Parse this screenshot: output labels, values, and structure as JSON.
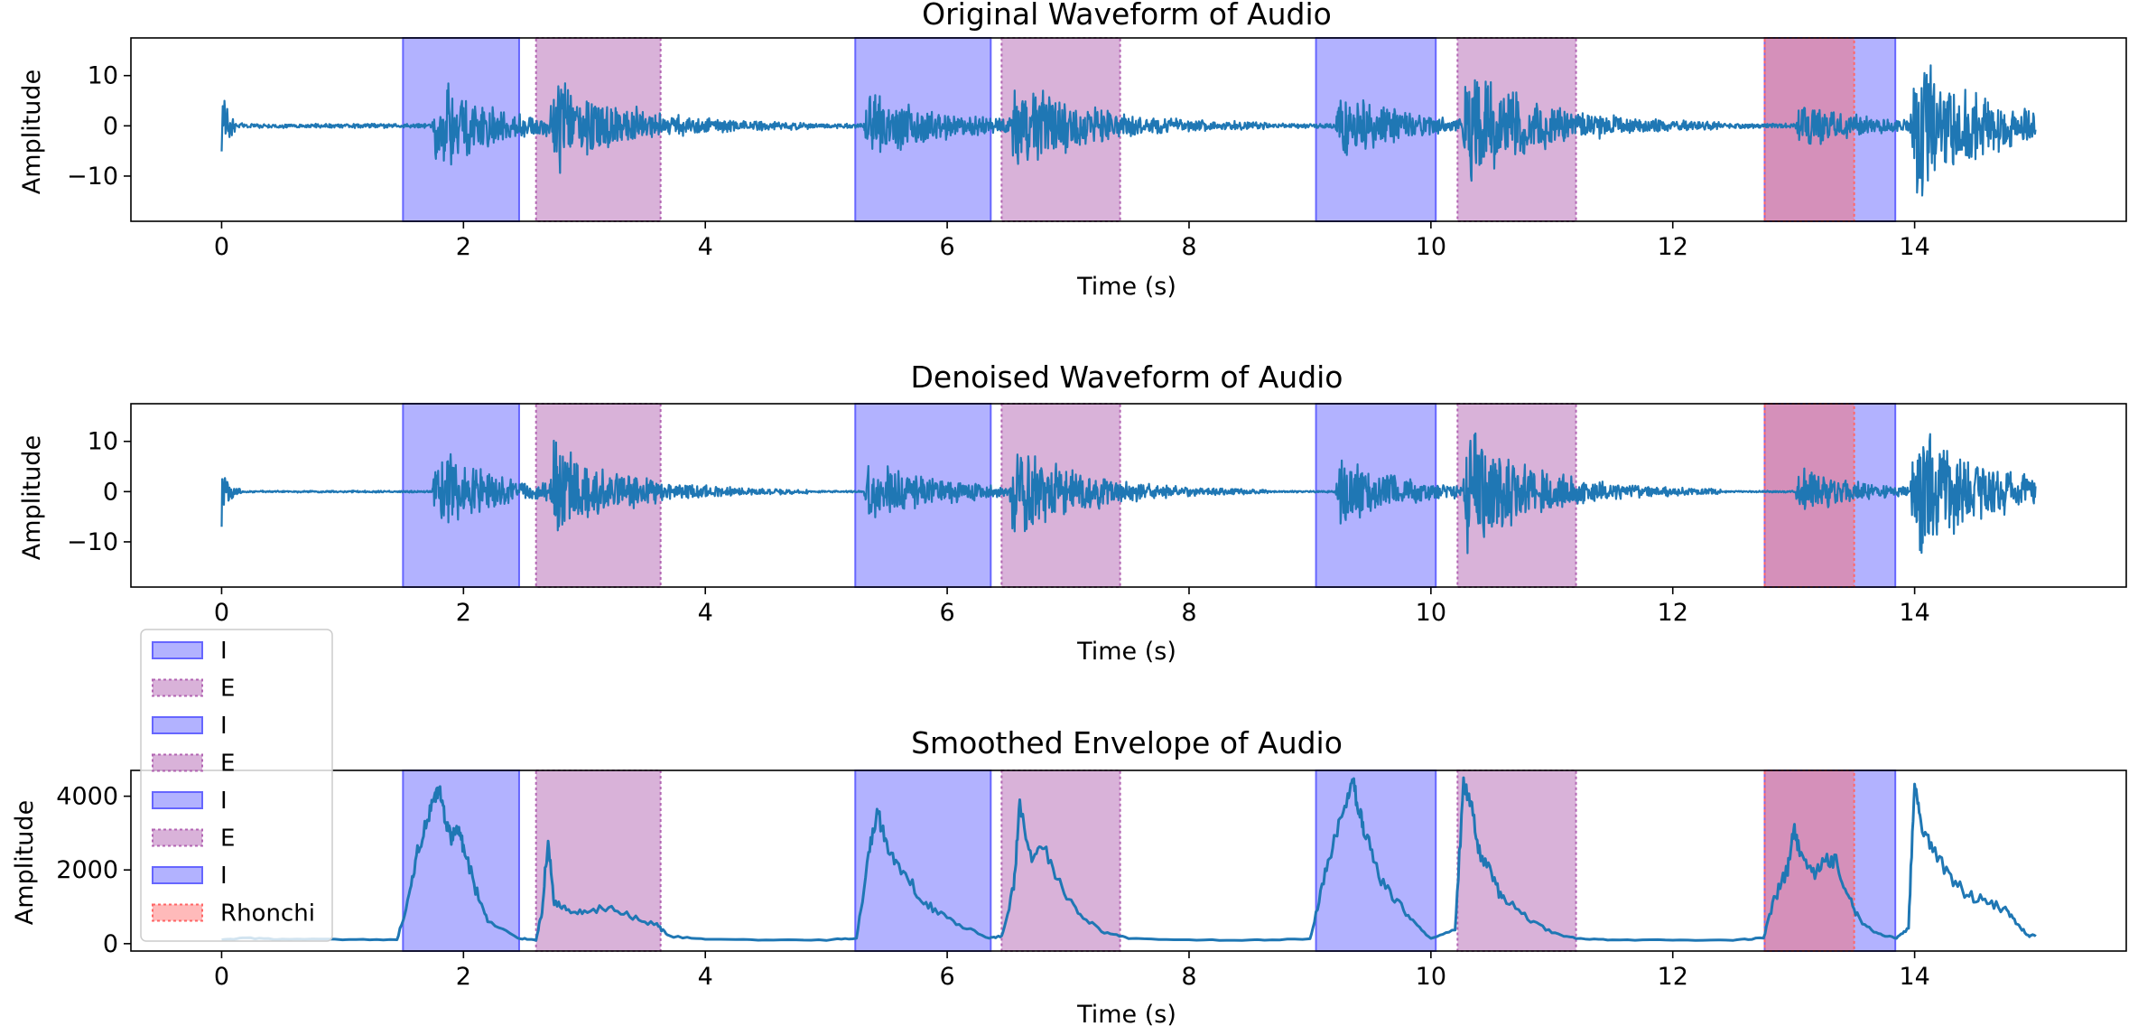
{
  "figure": {
    "background": "#ffffff",
    "signal_color": "#1f77b4",
    "inhale_color": "#6666ff",
    "exhale_color": "#b366b3",
    "rhonchi_color": "#ff6666"
  },
  "chart_data": [
    {
      "type": "line",
      "title": "Original Waveform of Audio",
      "xlabel": "Time (s)",
      "ylabel": "Amplitude",
      "xlim": [
        -0.75,
        15.75
      ],
      "ylim": [
        -19,
        17.5
      ],
      "xticks": [
        0,
        2,
        4,
        6,
        8,
        10,
        12,
        14
      ],
      "yticks": [
        10,
        0,
        -10
      ],
      "series": [
        {
          "kind": "waveform",
          "baseline": 0,
          "noise": 0.5,
          "bursts": [
            {
              "t": 0.0,
              "amp": 9,
              "decay": 0.05
            },
            {
              "t": 1.78,
              "amp": 10,
              "decay": 0.5
            },
            {
              "t": 2.75,
              "amp": 9.5,
              "decay": 0.6
            },
            {
              "t": 5.35,
              "amp": 7,
              "decay": 0.6
            },
            {
              "t": 6.55,
              "amp": 10,
              "decay": 0.6
            },
            {
              "t": 9.25,
              "amp": 8,
              "decay": 0.5
            },
            {
              "t": 10.3,
              "amp": 13,
              "decay": 0.6
            },
            {
              "t": 13.05,
              "amp": 5,
              "decay": 0.5
            },
            {
              "t": 14.0,
              "amp": 15.5,
              "decay": 0.6
            }
          ]
        }
      ]
    },
    {
      "type": "line",
      "title": "Denoised Waveform of Audio",
      "xlabel": "Time (s)",
      "ylabel": "Amplitude",
      "xlim": [
        -0.75,
        15.75
      ],
      "ylim": [
        -19,
        17.5
      ],
      "xticks": [
        0,
        2,
        4,
        6,
        8,
        10,
        12,
        14
      ],
      "yticks": [
        10,
        0,
        -10
      ],
      "series": [
        {
          "kind": "waveform",
          "baseline": 0,
          "noise": 0.2,
          "bursts": [
            {
              "t": 0.0,
              "amp": 8.5,
              "decay": 0.05
            },
            {
              "t": 1.78,
              "amp": 10,
              "decay": 0.5
            },
            {
              "t": 2.75,
              "amp": 9.5,
              "decay": 0.6
            },
            {
              "t": 5.35,
              "amp": 7,
              "decay": 0.6
            },
            {
              "t": 6.55,
              "amp": 10,
              "decay": 0.6
            },
            {
              "t": 9.25,
              "amp": 8,
              "decay": 0.5
            },
            {
              "t": 10.3,
              "amp": 13,
              "decay": 0.6
            },
            {
              "t": 13.05,
              "amp": 5,
              "decay": 0.5
            },
            {
              "t": 14.0,
              "amp": 15.5,
              "decay": 0.6
            }
          ]
        }
      ]
    },
    {
      "type": "line",
      "title": "Smoothed Envelope of Audio",
      "xlabel": "Time (s)",
      "ylabel": "Amplitude",
      "xlim": [
        -0.75,
        15.75
      ],
      "ylim": [
        -200,
        4700
      ],
      "xticks": [
        0,
        2,
        4,
        6,
        8,
        10,
        12,
        14
      ],
      "yticks": [
        4000,
        2000,
        0
      ],
      "series": [
        {
          "kind": "envelope",
          "x": [
            0,
            0.2,
            0.5,
            1.0,
            1.45,
            1.55,
            1.62,
            1.7,
            1.76,
            1.8,
            1.85,
            1.9,
            1.95,
            2.0,
            2.1,
            2.2,
            2.45,
            2.6,
            2.65,
            2.7,
            2.75,
            2.85,
            3.0,
            3.2,
            3.4,
            3.6,
            3.7,
            4.0,
            4.5,
            5.0,
            5.25,
            5.35,
            5.42,
            5.5,
            5.6,
            5.75,
            5.9,
            6.1,
            6.35,
            6.45,
            6.55,
            6.6,
            6.7,
            6.8,
            6.95,
            7.1,
            7.3,
            7.5,
            8.0,
            8.5,
            9.0,
            9.1,
            9.2,
            9.3,
            9.35,
            9.4,
            9.45,
            9.55,
            9.7,
            9.85,
            10.0,
            10.2,
            10.27,
            10.33,
            10.4,
            10.5,
            10.6,
            10.8,
            11.0,
            11.2,
            11.5,
            12.0,
            12.5,
            12.75,
            12.85,
            12.95,
            13.0,
            13.05,
            13.15,
            13.25,
            13.35,
            13.45,
            13.55,
            13.7,
            13.85,
            13.95,
            14.0,
            14.05,
            14.15,
            14.3,
            14.45,
            14.6,
            14.75,
            14.85,
            14.95,
            15.0
          ],
          "y": [
            100,
            150,
            120,
            110,
            100,
            1200,
            2500,
            3300,
            3900,
            4150,
            3400,
            2800,
            3200,
            2600,
            1500,
            600,
            150,
            100,
            900,
            2800,
            1100,
            900,
            800,
            1000,
            700,
            500,
            200,
            120,
            100,
            100,
            150,
            2400,
            3600,
            2700,
            2000,
            1400,
            900,
            500,
            150,
            200,
            1500,
            3800,
            2200,
            2600,
            1500,
            800,
            300,
            150,
            100,
            100,
            120,
            1500,
            2800,
            3700,
            4450,
            3700,
            3100,
            2000,
            1200,
            600,
            150,
            400,
            4300,
            3800,
            2500,
            1800,
            1200,
            700,
            300,
            150,
            100,
            100,
            100,
            150,
            1300,
            2000,
            3100,
            2500,
            1800,
            2200,
            2300,
            1300,
            600,
            250,
            150,
            400,
            4500,
            3300,
            2600,
            1800,
            1300,
            1200,
            900,
            500,
            200,
            250
          ]
        }
      ]
    }
  ],
  "regions": [
    {
      "label": "I",
      "start": 1.5,
      "end": 2.46,
      "kind": "inhale"
    },
    {
      "label": "E",
      "start": 2.6,
      "end": 3.63,
      "kind": "exhale"
    },
    {
      "label": "I",
      "start": 5.24,
      "end": 6.36,
      "kind": "inhale"
    },
    {
      "label": "E",
      "start": 6.45,
      "end": 7.43,
      "kind": "exhale"
    },
    {
      "label": "I",
      "start": 9.05,
      "end": 10.04,
      "kind": "inhale"
    },
    {
      "label": "E",
      "start": 10.22,
      "end": 11.2,
      "kind": "exhale"
    },
    {
      "label": "I",
      "start": 12.76,
      "end": 13.84,
      "kind": "inhale"
    },
    {
      "label": "Rhonchi",
      "start": 12.76,
      "end": 13.5,
      "kind": "rhonchi"
    }
  ],
  "legend": {
    "location": "lower left",
    "entries": [
      {
        "label": "I",
        "kind": "inhale"
      },
      {
        "label": "E",
        "kind": "exhale"
      },
      {
        "label": "I",
        "kind": "inhale"
      },
      {
        "label": "E",
        "kind": "exhale"
      },
      {
        "label": "I",
        "kind": "inhale"
      },
      {
        "label": "E",
        "kind": "exhale"
      },
      {
        "label": "I",
        "kind": "inhale"
      },
      {
        "label": "Rhonchi",
        "kind": "rhonchi"
      }
    ]
  }
}
